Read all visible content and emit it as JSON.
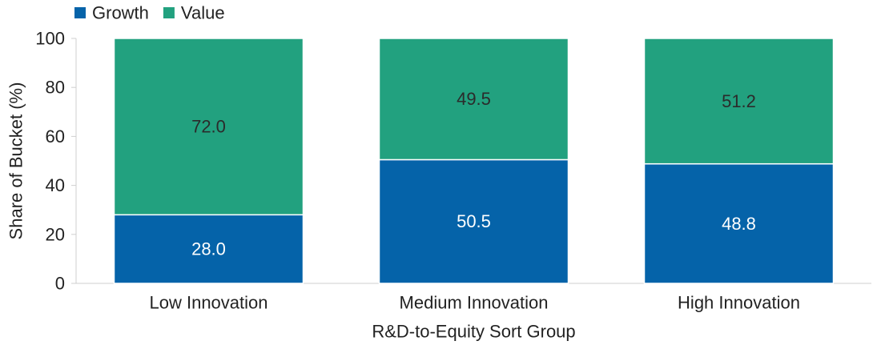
{
  "chart_data": {
    "type": "bar",
    "stacked": true,
    "categories": [
      "Low Innovation",
      "Medium Innovation",
      "High Innovation"
    ],
    "series": [
      {
        "name": "Growth",
        "values": [
          28.0,
          50.5,
          48.8
        ],
        "color": "#0563A9",
        "label_color": "#ffffff"
      },
      {
        "name": "Value",
        "values": [
          72.0,
          49.5,
          51.2
        ],
        "color": "#22A17F",
        "label_color": "#2b2b2b"
      }
    ],
    "value_labels": [
      [
        "28.0",
        "50.5",
        "48.8"
      ],
      [
        "72.0",
        "49.5",
        "51.2"
      ]
    ],
    "xlabel": "R&D-to-Equity Sort Group",
    "ylabel": "Share of Bucket (%)",
    "ylim": [
      0,
      100
    ],
    "yticks": [
      "0",
      "20",
      "40",
      "60",
      "80",
      "100"
    ],
    "grid": false,
    "legend_position": "top-left"
  }
}
